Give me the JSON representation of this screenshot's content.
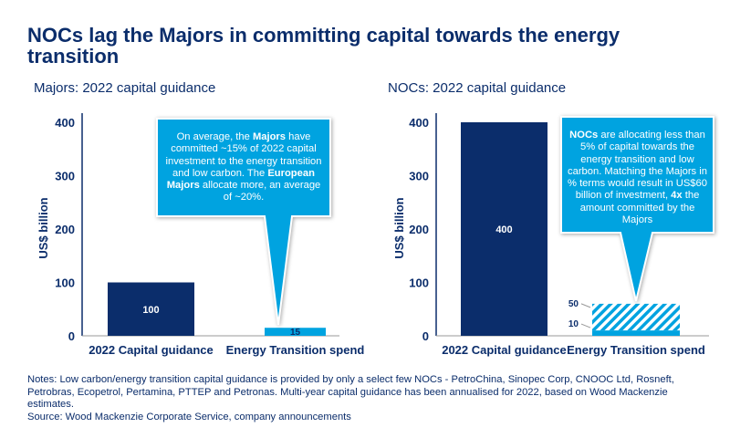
{
  "title": "NOCs lag the Majors in committing capital towards the energy transition",
  "colors": {
    "navy": "#0b2d6b",
    "blue": "#00a3e0"
  },
  "chart_data": [
    {
      "type": "bar",
      "title": "Majors: 2022 capital guidance",
      "ylabel": "US$ billion",
      "ylim": [
        0,
        400
      ],
      "yticks": [
        "0",
        "100",
        "200",
        "300",
        "400"
      ],
      "categories": [
        "2022 Capital guidance",
        "Energy Transition spend"
      ],
      "values": [
        100,
        15
      ],
      "labels": [
        "100",
        "15"
      ],
      "callout": "On average, the Majors have committed ~15% of 2022 capital investment to the energy transition and low carbon. The European Majors allocate more, an average of ~20%."
    },
    {
      "type": "bar",
      "title": "NOCs: 2022 capital guidance",
      "ylabel": "US$ billion",
      "ylim": [
        0,
        400
      ],
      "yticks": [
        "0",
        "100",
        "200",
        "300",
        "400"
      ],
      "categories": [
        "2022 Capital guidance",
        "Energy Transition spend"
      ],
      "values": [
        400,
        10
      ],
      "labels": [
        "400",
        ""
      ],
      "hatched_extra": {
        "category": "Energy Transition spend",
        "from": 10,
        "to": 60
      },
      "annotations": [
        "50",
        "10"
      ],
      "callout": "NOCs are allocating less than 5% of capital towards the energy transition and low carbon. Matching the Majors in % terms would result in US$60 billion of investment, 4x the amount committed by the Majors"
    }
  ],
  "notes": "Notes: Low carbon/energy transition capital guidance is provided by only a select few NOCs - PetroChina, Sinopec Corp, CNOOC Ltd, Rosneft, Petrobras, Ecopetrol, Pertamina, PTTEP and Petronas. Multi-year capital guidance has been annualised for 2022, based on Wood Mackenzie estimates.",
  "source": "Source: Wood Mackenzie Corporate Service, company announcements"
}
